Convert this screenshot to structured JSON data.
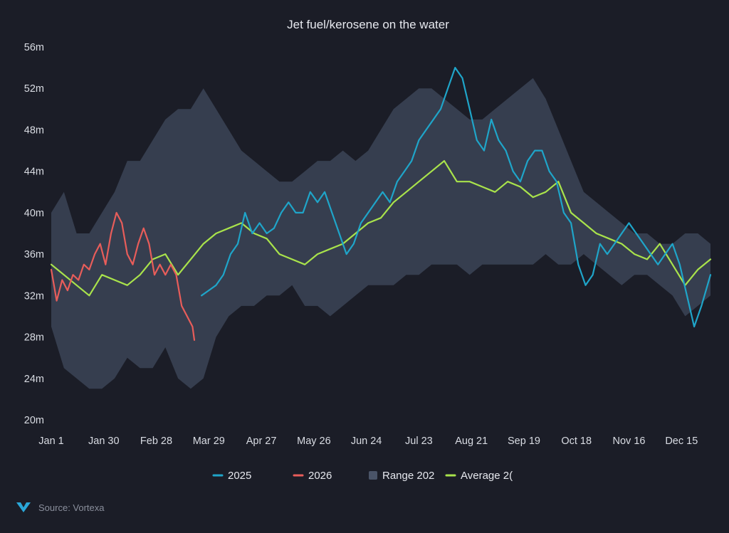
{
  "colors": {
    "background": "#1b1d27",
    "series_2025": "#1fa5c9",
    "series_2026": "#e85d5a",
    "range": "#3a4254",
    "average": "#a9e34b",
    "text": "#e6e8ee",
    "axis_text": "#d9dce3",
    "source_text": "#8a8f9c",
    "logo": "#2aa7d8"
  },
  "source": {
    "label": "Source: Vortexa",
    "logo_icon": "vortexa-logo-icon"
  },
  "chart_data": {
    "type": "line",
    "title": "Jet fuel/kerosene on the water",
    "xlabel": "",
    "ylabel": "",
    "x_unit": "day of year",
    "xlim": [
      1,
      365
    ],
    "ylim": [
      20,
      56
    ],
    "y_ticks": [
      {
        "value": 20,
        "label": "20m"
      },
      {
        "value": 24,
        "label": "24m"
      },
      {
        "value": 28,
        "label": "28m"
      },
      {
        "value": 32,
        "label": "32m"
      },
      {
        "value": 36,
        "label": "36m"
      },
      {
        "value": 40,
        "label": "40m"
      },
      {
        "value": 44,
        "label": "44m"
      },
      {
        "value": 48,
        "label": "48m"
      },
      {
        "value": 52,
        "label": "52m"
      },
      {
        "value": 56,
        "label": "56m"
      }
    ],
    "x_ticks": [
      {
        "day": 1,
        "label": "Jan 1"
      },
      {
        "day": 30,
        "label": "Jan 30"
      },
      {
        "day": 59,
        "label": "Feb 28"
      },
      {
        "day": 88,
        "label": "Mar 29"
      },
      {
        "day": 117,
        "label": "Apr 27"
      },
      {
        "day": 146,
        "label": "May 26"
      },
      {
        "day": 175,
        "label": "Jun 24"
      },
      {
        "day": 204,
        "label": "Jul 23"
      },
      {
        "day": 233,
        "label": "Aug 21"
      },
      {
        "day": 262,
        "label": "Sep 19"
      },
      {
        "day": 291,
        "label": "Oct 18"
      },
      {
        "day": 320,
        "label": "Nov 16"
      },
      {
        "day": 349,
        "label": "Dec 15"
      }
    ],
    "grid": false,
    "legend": {
      "position": "bottom-center",
      "entries": [
        {
          "name": "2025",
          "marker": "line",
          "color": "#1fa5c9"
        },
        {
          "name": "2026",
          "marker": "line",
          "color": "#e85d5a"
        },
        {
          "name": "Range 202",
          "marker": "square",
          "color": "#4a5468"
        },
        {
          "name": "Average 2(",
          "marker": "line",
          "color": "#a9e34b"
        }
      ]
    },
    "range_band": {
      "name": "Range 202",
      "x": [
        1,
        8,
        15,
        22,
        29,
        36,
        43,
        50,
        57,
        64,
        71,
        78,
        85,
        92,
        99,
        106,
        113,
        120,
        127,
        134,
        141,
        148,
        155,
        162,
        169,
        176,
        183,
        190,
        197,
        204,
        211,
        218,
        225,
        232,
        239,
        246,
        253,
        260,
        267,
        274,
        281,
        288,
        295,
        302,
        309,
        316,
        323,
        330,
        337,
        344,
        351,
        358,
        365
      ],
      "low": [
        29,
        25,
        24,
        23,
        23,
        24,
        26,
        25,
        25,
        27,
        24,
        23,
        24,
        28,
        30,
        31,
        31,
        32,
        32,
        33,
        31,
        31,
        30,
        31,
        32,
        33,
        33,
        33,
        34,
        34,
        35,
        35,
        35,
        34,
        35,
        35,
        35,
        35,
        35,
        36,
        35,
        35,
        36,
        35,
        34,
        33,
        34,
        34,
        33,
        32,
        30,
        31,
        32
      ],
      "high": [
        40,
        42,
        38,
        38,
        40,
        42,
        45,
        45,
        47,
        49,
        50,
        50,
        52,
        50,
        48,
        46,
        45,
        44,
        43,
        43,
        44,
        45,
        45,
        46,
        45,
        46,
        48,
        50,
        51,
        52,
        52,
        51,
        50,
        49,
        49,
        50,
        51,
        52,
        53,
        51,
        48,
        45,
        42,
        41,
        40,
        39,
        38,
        38,
        37,
        37,
        38,
        38,
        37
      ]
    },
    "series": [
      {
        "name": "2025",
        "x": [
          84,
          88,
          92,
          96,
          100,
          104,
          108,
          112,
          116,
          120,
          124,
          128,
          132,
          136,
          140,
          144,
          148,
          152,
          156,
          160,
          164,
          168,
          172,
          176,
          180,
          184,
          188,
          192,
          196,
          200,
          204,
          208,
          212,
          216,
          220,
          224,
          228,
          232,
          236,
          240,
          244,
          248,
          252,
          256,
          260,
          264,
          268,
          272,
          276,
          280,
          284,
          288,
          292,
          296,
          300,
          304,
          308,
          312,
          316,
          320,
          324,
          328,
          332,
          336,
          340,
          344,
          348,
          352,
          356,
          360,
          365
        ],
        "values": [
          32,
          32.5,
          33,
          34,
          36,
          37,
          40,
          38,
          39,
          38,
          38.5,
          40,
          41,
          40,
          40,
          42,
          41,
          42,
          40,
          38,
          36,
          37,
          39,
          40,
          41,
          42,
          41,
          43,
          44,
          45,
          47,
          48,
          49,
          50,
          52,
          54,
          53,
          50,
          47,
          46,
          49,
          47,
          46,
          44,
          43,
          45,
          46,
          46,
          44,
          43,
          40,
          39,
          35,
          33,
          34,
          37,
          36,
          37,
          38,
          39,
          38,
          37,
          36,
          35,
          36,
          37,
          35,
          32,
          29,
          31,
          34
        ]
      },
      {
        "name": "2026",
        "x": [
          1,
          4,
          7,
          10,
          13,
          16,
          19,
          22,
          25,
          28,
          31,
          34,
          37,
          40,
          43,
          46,
          49,
          52,
          55,
          58,
          61,
          64,
          67,
          70,
          73,
          76,
          79,
          80
        ],
        "values": [
          34.5,
          31.5,
          33.5,
          32.5,
          34,
          33.5,
          35,
          34.5,
          36,
          37,
          35,
          38,
          40,
          39,
          36,
          35,
          37,
          38.5,
          37,
          34,
          35,
          34,
          35,
          34,
          31,
          30,
          29,
          27.7
        ]
      },
      {
        "name": "Average 2(",
        "x": [
          1,
          8,
          15,
          22,
          29,
          36,
          43,
          50,
          57,
          64,
          71,
          78,
          85,
          92,
          99,
          106,
          113,
          120,
          127,
          134,
          141,
          148,
          155,
          162,
          169,
          176,
          183,
          190,
          197,
          204,
          211,
          218,
          225,
          232,
          239,
          246,
          253,
          260,
          267,
          274,
          281,
          288,
          295,
          302,
          309,
          316,
          323,
          330,
          337,
          344,
          351,
          358,
          365
        ],
        "values": [
          35,
          34,
          33,
          32,
          34,
          33.5,
          33,
          34,
          35.5,
          36,
          34,
          35.5,
          37,
          38,
          38.5,
          39,
          38,
          37.5,
          36,
          35.5,
          35,
          36,
          36.5,
          37,
          38,
          39,
          39.5,
          41,
          42,
          43,
          44,
          45,
          43,
          43,
          42.5,
          42,
          43,
          42.5,
          41.5,
          42,
          43,
          40,
          39,
          38,
          37.5,
          37,
          36,
          35.5,
          37,
          35,
          33,
          34.5,
          35.5
        ]
      }
    ]
  }
}
